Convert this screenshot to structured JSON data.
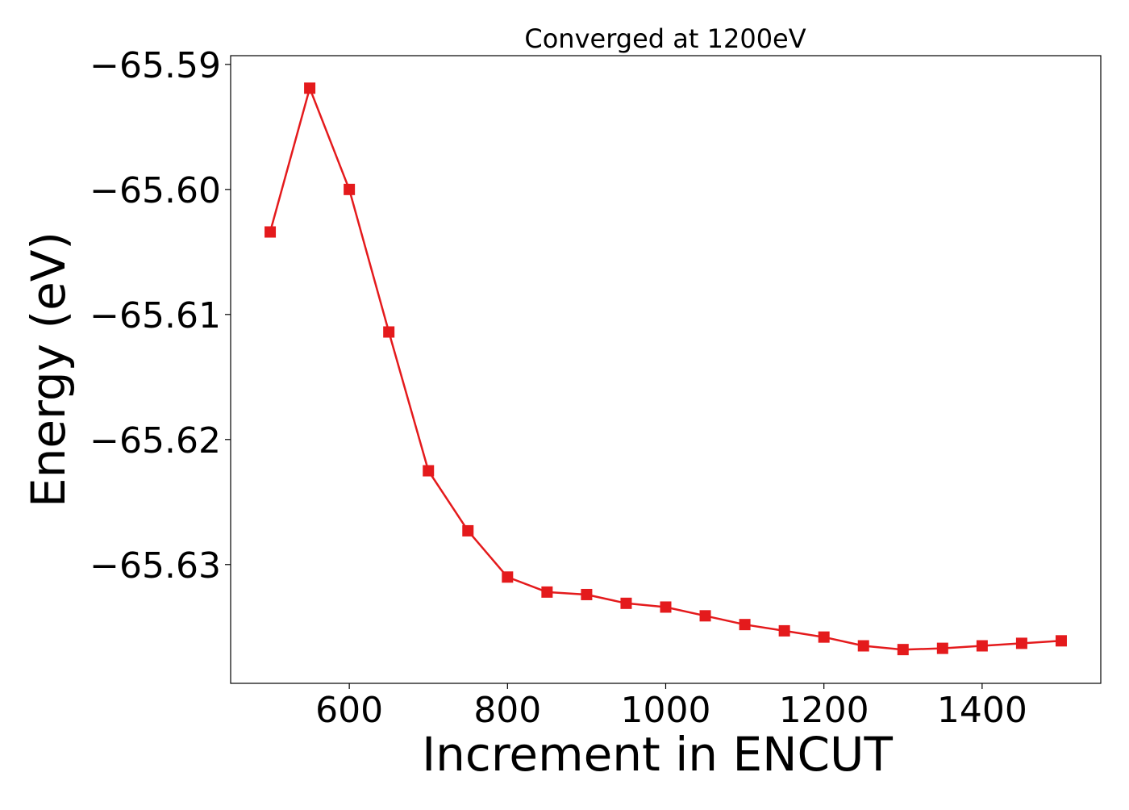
{
  "chart_data": {
    "type": "line",
    "title": "Converged at 1200eV",
    "xlabel": "Increment in ENCUT",
    "ylabel": "Energy (eV)",
    "xlim": [
      450,
      1550
    ],
    "ylim": [
      -65.6395,
      -65.5893
    ],
    "x_ticks": [
      600,
      800,
      1000,
      1200,
      1400
    ],
    "x_tick_labels": [
      "600",
      "800",
      "1000",
      "1200",
      "1400"
    ],
    "y_ticks": [
      -65.59,
      -65.6,
      -65.61,
      -65.62,
      -65.63
    ],
    "y_tick_labels": [
      "−65.59",
      "−65.60",
      "−65.61",
      "−65.62",
      "−65.63"
    ],
    "grid": false,
    "series": [
      {
        "color": "#e41a1c",
        "marker": "square",
        "x": [
          500,
          550,
          600,
          650,
          700,
          750,
          800,
          850,
          900,
          950,
          1000,
          1050,
          1100,
          1150,
          1200,
          1250,
          1300,
          1350,
          1400,
          1450,
          1500
        ],
        "values": [
          -65.6034,
          -65.5919,
          -65.6,
          -65.6114,
          -65.6225,
          -65.6273,
          -65.631,
          -65.6322,
          -65.6324,
          -65.6331,
          -65.6334,
          -65.6341,
          -65.6348,
          -65.6353,
          -65.6358,
          -65.6365,
          -65.6368,
          -65.6367,
          -65.6365,
          -65.6363,
          -65.6361
        ]
      }
    ]
  }
}
